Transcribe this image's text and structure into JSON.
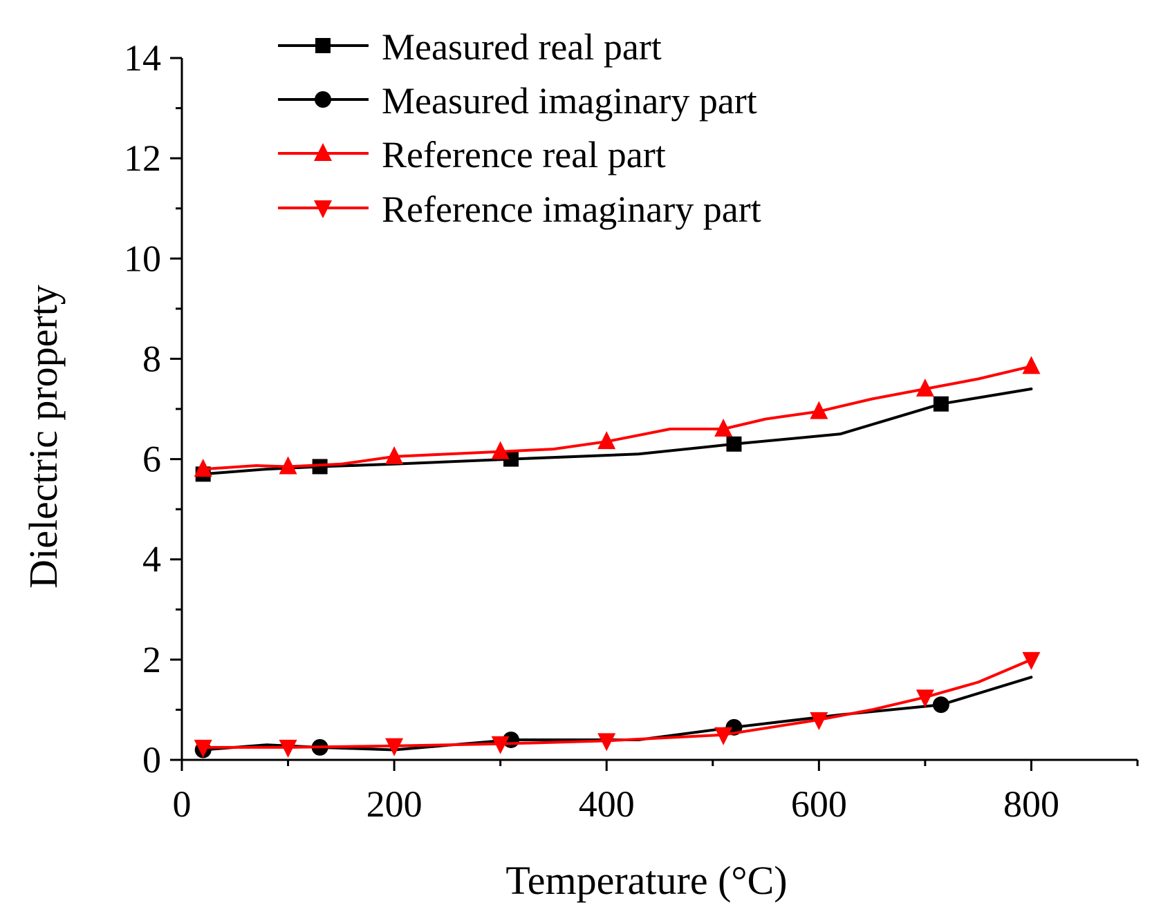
{
  "chart_data": {
    "type": "line",
    "title": "",
    "xlabel": "Temperature (°C)",
    "ylabel": "Dielectric property",
    "xlim": [
      0,
      900
    ],
    "ylim": [
      0,
      14
    ],
    "xticks": [
      0,
      200,
      400,
      600,
      800
    ],
    "yticks": [
      0,
      2,
      4,
      6,
      8,
      10,
      12,
      14
    ],
    "xtick_labels": [
      "0",
      "200",
      "400",
      "600",
      "800"
    ],
    "ytick_labels": [
      "0",
      "2",
      "4",
      "6",
      "8",
      "10",
      "12",
      "14"
    ],
    "grid": false,
    "legend_position": "top-left",
    "series": [
      {
        "name": "Measured real part",
        "color": "#000000",
        "marker": "square",
        "line": [
          [
            20,
            5.7
          ],
          [
            80,
            5.8
          ],
          [
            130,
            5.85
          ],
          [
            200,
            5.9
          ],
          [
            310,
            6.0
          ],
          [
            430,
            6.1
          ],
          [
            520,
            6.3
          ],
          [
            620,
            6.5
          ],
          [
            715,
            7.1
          ],
          [
            800,
            7.4
          ]
        ],
        "markers": [
          [
            20,
            5.7
          ],
          [
            130,
            5.85
          ],
          [
            310,
            6.0
          ],
          [
            520,
            6.3
          ],
          [
            715,
            7.1
          ]
        ]
      },
      {
        "name": "Measured imaginary part",
        "color": "#000000",
        "marker": "circle",
        "line": [
          [
            20,
            0.2
          ],
          [
            80,
            0.3
          ],
          [
            130,
            0.25
          ],
          [
            200,
            0.2
          ],
          [
            310,
            0.4
          ],
          [
            430,
            0.4
          ],
          [
            520,
            0.65
          ],
          [
            620,
            0.9
          ],
          [
            715,
            1.1
          ],
          [
            800,
            1.65
          ]
        ],
        "markers": [
          [
            20,
            0.2
          ],
          [
            130,
            0.25
          ],
          [
            310,
            0.4
          ],
          [
            520,
            0.65
          ],
          [
            715,
            1.1
          ]
        ]
      },
      {
        "name": "Reference real part",
        "color": "#ff0000",
        "marker": "triangle-up",
        "line": [
          [
            20,
            5.8
          ],
          [
            70,
            5.87
          ],
          [
            100,
            5.85
          ],
          [
            150,
            5.9
          ],
          [
            200,
            6.05
          ],
          [
            300,
            6.15
          ],
          [
            350,
            6.2
          ],
          [
            400,
            6.35
          ],
          [
            460,
            6.6
          ],
          [
            510,
            6.6
          ],
          [
            550,
            6.8
          ],
          [
            600,
            6.95
          ],
          [
            650,
            7.2
          ],
          [
            700,
            7.4
          ],
          [
            750,
            7.6
          ],
          [
            800,
            7.85
          ]
        ],
        "markers": [
          [
            20,
            5.8
          ],
          [
            100,
            5.85
          ],
          [
            200,
            6.05
          ],
          [
            300,
            6.15
          ],
          [
            400,
            6.35
          ],
          [
            510,
            6.6
          ],
          [
            600,
            6.95
          ],
          [
            700,
            7.4
          ],
          [
            800,
            7.85
          ]
        ]
      },
      {
        "name": "Reference imaginary part",
        "color": "#ff0000",
        "marker": "triangle-down",
        "line": [
          [
            20,
            0.25
          ],
          [
            100,
            0.25
          ],
          [
            200,
            0.28
          ],
          [
            300,
            0.32
          ],
          [
            400,
            0.38
          ],
          [
            510,
            0.5
          ],
          [
            600,
            0.8
          ],
          [
            650,
            1.0
          ],
          [
            700,
            1.25
          ],
          [
            750,
            1.55
          ],
          [
            800,
            2.0
          ]
        ],
        "markers": [
          [
            20,
            0.25
          ],
          [
            100,
            0.25
          ],
          [
            200,
            0.28
          ],
          [
            300,
            0.32
          ],
          [
            400,
            0.38
          ],
          [
            510,
            0.5
          ],
          [
            600,
            0.8
          ],
          [
            700,
            1.25
          ],
          [
            800,
            2.0
          ]
        ]
      }
    ]
  }
}
